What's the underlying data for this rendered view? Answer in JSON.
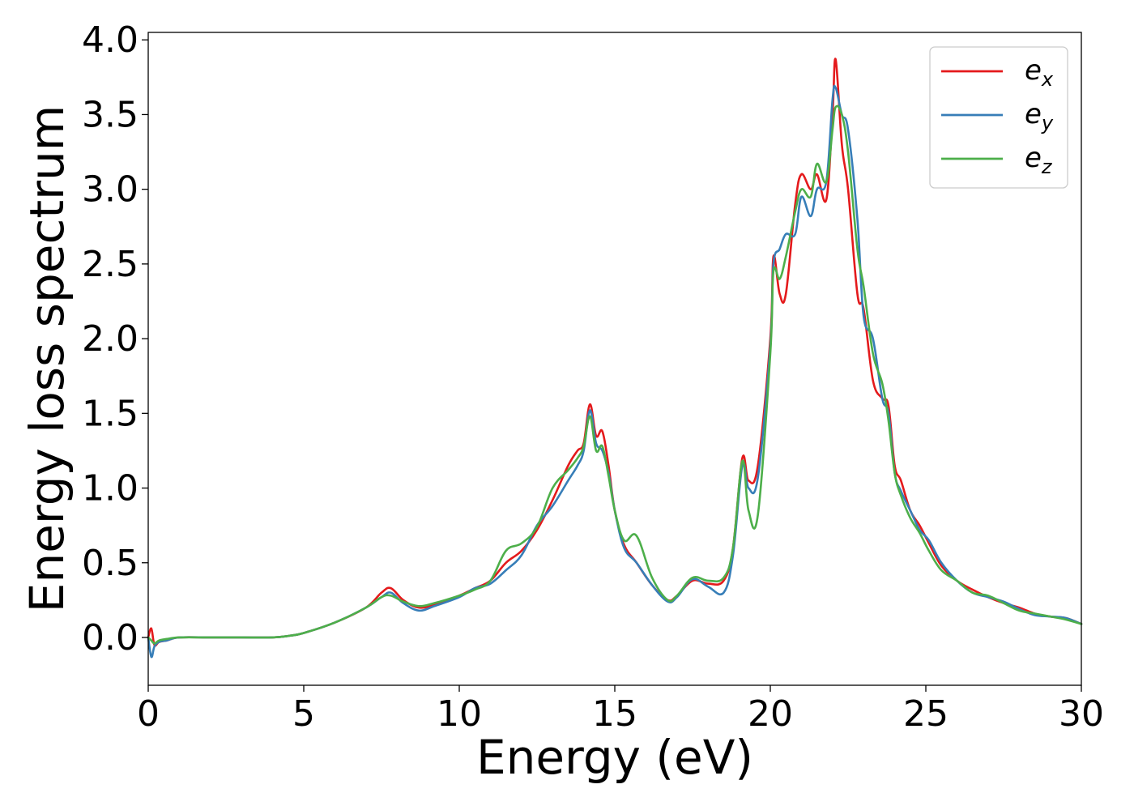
{
  "chart_data": {
    "type": "line",
    "title": "",
    "xlabel": "Energy (eV)",
    "ylabel": "Energy loss spectrum",
    "xlim": [
      0,
      30
    ],
    "ylim": [
      -0.32,
      4.05
    ],
    "xticks": [
      0,
      5,
      10,
      15,
      20,
      25,
      30
    ],
    "xtick_labels": [
      "0",
      "5",
      "10",
      "15",
      "20",
      "25",
      "30"
    ],
    "yticks": [
      0.0,
      0.5,
      1.0,
      1.5,
      2.0,
      2.5,
      3.0,
      3.5,
      4.0
    ],
    "ytick_labels": [
      "0.0",
      "0.5",
      "1.0",
      "1.5",
      "2.0",
      "2.5",
      "3.0",
      "3.5",
      "4.0"
    ],
    "grid": false,
    "legend_position": "top-right",
    "series": [
      {
        "name": "e_x",
        "legend_main": "e",
        "legend_sub": "x",
        "color": "#e41a1c",
        "x": [
          0,
          0.1,
          0.2,
          0.35,
          0.6,
          1,
          2,
          3,
          4,
          4.5,
          5,
          6,
          7,
          7.5,
          7.8,
          8.2,
          8.7,
          9.2,
          10,
          10.5,
          11,
          11.5,
          12,
          12.5,
          13,
          13.5,
          13.8,
          14,
          14.2,
          14.4,
          14.6,
          14.8,
          15,
          15.3,
          15.7,
          16.2,
          16.7,
          17,
          17.5,
          18,
          18.5,
          18.8,
          19.1,
          19.3,
          19.6,
          20,
          20.1,
          20.3,
          20.5,
          20.8,
          21,
          21.3,
          21.5,
          21.8,
          22,
          22.1,
          22.3,
          22.5,
          22.8,
          23,
          23.3,
          23.6,
          23.8,
          24,
          24.2,
          24.5,
          24.8,
          25.1,
          25.5,
          26,
          26.5,
          27,
          27.5,
          28,
          28.5,
          29,
          29.5,
          30
        ],
        "y": [
          0.0,
          0.06,
          -0.05,
          -0.03,
          -0.02,
          0.0,
          0.0,
          0.0,
          0.0,
          0.01,
          0.03,
          0.1,
          0.2,
          0.3,
          0.33,
          0.25,
          0.2,
          0.22,
          0.28,
          0.33,
          0.38,
          0.5,
          0.58,
          0.72,
          0.92,
          1.15,
          1.25,
          1.3,
          1.56,
          1.35,
          1.38,
          1.15,
          0.85,
          0.62,
          0.5,
          0.35,
          0.25,
          0.28,
          0.38,
          0.36,
          0.38,
          0.6,
          1.2,
          1.05,
          1.15,
          2.0,
          2.55,
          2.3,
          2.3,
          2.9,
          3.1,
          3.0,
          3.1,
          2.93,
          3.5,
          3.87,
          3.3,
          3.0,
          2.3,
          2.2,
          1.72,
          1.6,
          1.55,
          1.15,
          1.05,
          0.85,
          0.75,
          0.63,
          0.48,
          0.38,
          0.32,
          0.27,
          0.23,
          0.2,
          0.16,
          0.14,
          0.13,
          0.09
        ]
      },
      {
        "name": "e_y",
        "legend_main": "e",
        "legend_sub": "y",
        "color": "#377eb8",
        "x": [
          0,
          0.1,
          0.2,
          0.35,
          0.6,
          1,
          2,
          3,
          4,
          4.5,
          5,
          6,
          7,
          7.5,
          7.8,
          8.2,
          8.7,
          9.2,
          10,
          10.5,
          11,
          11.5,
          12,
          12.5,
          13,
          13.5,
          13.8,
          14,
          14.2,
          14.4,
          14.6,
          14.8,
          15,
          15.3,
          15.7,
          16.2,
          16.7,
          17,
          17.5,
          18,
          18.5,
          18.8,
          19.1,
          19.3,
          19.6,
          20,
          20.1,
          20.3,
          20.5,
          20.8,
          21,
          21.3,
          21.5,
          21.8,
          22,
          22.1,
          22.3,
          22.5,
          22.8,
          23,
          23.3,
          23.6,
          23.8,
          24,
          24.2,
          24.5,
          24.8,
          25.1,
          25.5,
          26,
          26.5,
          27,
          27.5,
          28,
          28.5,
          29,
          29.5,
          30
        ],
        "y": [
          0.0,
          -0.13,
          -0.06,
          -0.03,
          -0.02,
          0.0,
          0.0,
          0.0,
          0.0,
          0.01,
          0.03,
          0.1,
          0.2,
          0.27,
          0.3,
          0.23,
          0.18,
          0.21,
          0.27,
          0.33,
          0.36,
          0.45,
          0.55,
          0.75,
          0.88,
          1.05,
          1.15,
          1.25,
          1.52,
          1.3,
          1.25,
          1.1,
          0.85,
          0.6,
          0.5,
          0.35,
          0.24,
          0.27,
          0.39,
          0.34,
          0.3,
          0.55,
          1.15,
          1.0,
          1.07,
          1.95,
          2.5,
          2.6,
          2.7,
          2.7,
          2.95,
          2.82,
          3.0,
          3.05,
          3.6,
          3.68,
          3.5,
          3.4,
          2.8,
          2.15,
          2.0,
          1.6,
          1.5,
          1.1,
          0.98,
          0.85,
          0.72,
          0.65,
          0.5,
          0.38,
          0.3,
          0.27,
          0.24,
          0.19,
          0.15,
          0.14,
          0.13,
          0.09
        ]
      },
      {
        "name": "e_z",
        "legend_main": "e",
        "legend_sub": "z",
        "color": "#4daf4a",
        "x": [
          0,
          0.1,
          0.2,
          0.35,
          0.6,
          1,
          2,
          3,
          4,
          4.5,
          5,
          6,
          7,
          7.5,
          7.8,
          8.2,
          8.7,
          9.2,
          10,
          10.5,
          11,
          11.5,
          12,
          12.5,
          13,
          13.5,
          13.8,
          14,
          14.2,
          14.4,
          14.6,
          14.8,
          15,
          15.3,
          15.7,
          16.2,
          16.7,
          17,
          17.5,
          18,
          18.5,
          18.8,
          19.1,
          19.3,
          19.6,
          20,
          20.1,
          20.3,
          20.5,
          20.8,
          21,
          21.3,
          21.5,
          21.8,
          22,
          22.1,
          22.3,
          22.5,
          22.8,
          23,
          23.3,
          23.6,
          23.8,
          24,
          24.2,
          24.5,
          24.8,
          25.1,
          25.5,
          26,
          26.5,
          27,
          27.5,
          28,
          28.5,
          29,
          29.5,
          30
        ],
        "y": [
          0.0,
          -0.02,
          -0.04,
          -0.02,
          -0.01,
          0.0,
          0.0,
          0.0,
          0.0,
          0.01,
          0.03,
          0.1,
          0.2,
          0.27,
          0.28,
          0.24,
          0.21,
          0.23,
          0.28,
          0.32,
          0.38,
          0.58,
          0.63,
          0.74,
          1.0,
          1.12,
          1.2,
          1.28,
          1.48,
          1.25,
          1.28,
          1.08,
          0.85,
          0.65,
          0.68,
          0.4,
          0.25,
          0.28,
          0.4,
          0.38,
          0.4,
          0.6,
          1.18,
          0.85,
          0.82,
          1.9,
          2.45,
          2.4,
          2.55,
          2.85,
          3.0,
          2.95,
          3.17,
          3.05,
          3.4,
          3.55,
          3.5,
          3.25,
          2.6,
          2.35,
          1.9,
          1.7,
          1.45,
          1.1,
          0.95,
          0.8,
          0.7,
          0.58,
          0.45,
          0.38,
          0.3,
          0.28,
          0.23,
          0.18,
          0.16,
          0.14,
          0.12,
          0.09
        ]
      }
    ]
  }
}
